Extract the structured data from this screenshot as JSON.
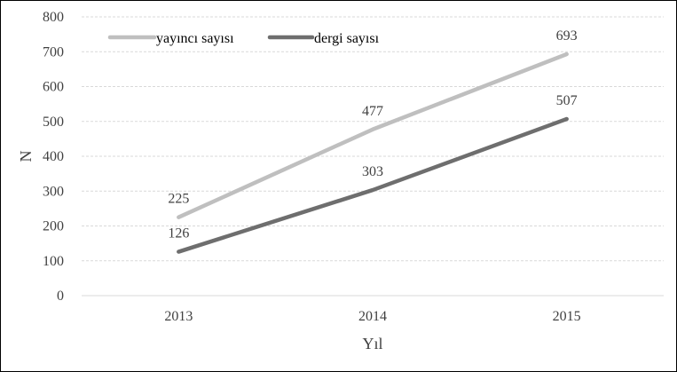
{
  "chart_data": {
    "type": "line",
    "title": "",
    "xlabel": "Yıl",
    "ylabel": "N",
    "categories": [
      "2013",
      "2014",
      "2015"
    ],
    "ylim": [
      0,
      800
    ],
    "yticks": [
      0,
      100,
      200,
      300,
      400,
      500,
      600,
      700,
      800
    ],
    "grid": "horizontal dashed",
    "legend_position": "top-left",
    "series": [
      {
        "name": "yayıncı sayısı",
        "values": [
          225,
          477,
          693
        ],
        "labels": [
          "225",
          "477",
          "693"
        ],
        "color": "#bfbfbf"
      },
      {
        "name": "dergi sayısı",
        "values": [
          126,
          303,
          507
        ],
        "labels": [
          "126",
          "303",
          "507"
        ],
        "color": "#6e6e6e"
      }
    ]
  }
}
